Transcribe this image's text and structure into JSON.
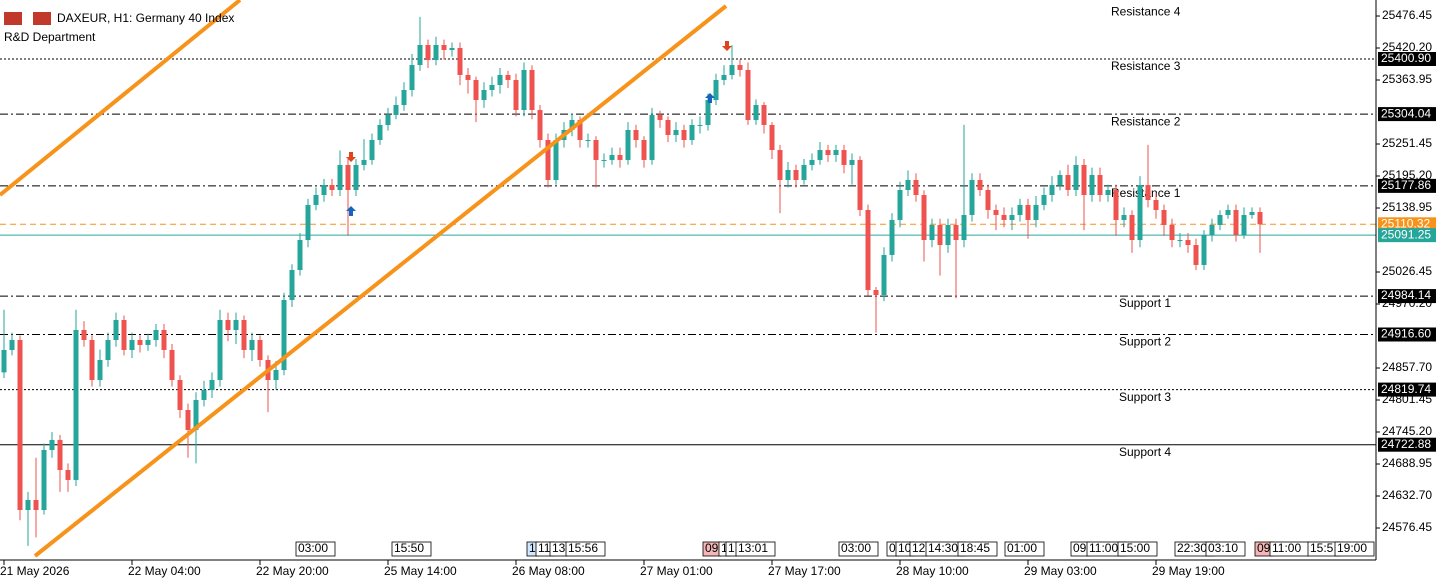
{
  "header": {
    "symbol_line": "DAXEUR, H1:  Germany 40 Index",
    "subtitle": "R&D Department"
  },
  "chart_data": {
    "type": "candlestick",
    "open": [
      24850,
      24889.4,
      24906.9,
      24608.1,
      24625.7,
      24608.1,
      24713.6,
      24731.2,
      24678.4,
      24660.9,
      24924.5,
      24906.9,
      24836.6,
      24871.8,
      24906.9,
      24942.1,
      24889.4,
      24906.9,
      24898.2,
      24906.9,
      24924.5,
      24889.4,
      24836.6,
      24783.9,
      24748.7,
      24801.5,
      24819.1,
      24836.6,
      24942.1,
      24924.5,
      24942.1,
      24889.4,
      24906.9,
      24871.8,
      24836.6,
      24854.2,
      24977.3,
      25030.0,
      25082.7,
      25144.3,
      25161.8,
      25179.4,
      25170.6,
      25214.6,
      25170.6,
      25214.6,
      25223.4,
      25258.5,
      25284.9,
      25302.5,
      25320.0,
      25346.4,
      25390.3,
      25425.5,
      25399.1,
      25425.5,
      25416.7,
      25420.2,
      25372.8,
      25364.0,
      25328.8,
      25346.4,
      25355.2,
      25372.8,
      25364.0,
      25311.2,
      25381.6,
      25311.2,
      25258.5,
      25188.2,
      25258.5,
      25276.1,
      25293.7,
      25258.5,
      25258.5,
      25223.4,
      25223.4,
      25232.1,
      25223.4,
      25276.1,
      25258.5,
      25223.4,
      25302.5,
      25293.7,
      25267.3,
      25276.1,
      25258.5,
      25284.9,
      25284.9,
      25328.8,
      25364.0,
      25372.8,
      25390.3,
      25381.6,
      25293.7,
      25320.0,
      25284.9,
      25240.9,
      25188.2,
      25205.8,
      25188.2,
      25214.6,
      25223.4,
      25240.9,
      25232.1,
      25240.9,
      25214.6,
      25223.4,
      25135.5,
      24994.8,
      24986.0,
      25056.4,
      25117.9,
      25170.6,
      25188.2,
      25161.8,
      25082.7,
      25109.1,
      25073.9,
      25109.1,
      25082.7,
      25126.7,
      25188.2,
      25170.6,
      25135.5,
      25126.7,
      25117.9,
      25126.7,
      25144.3,
      25117.9,
      25144.3,
      25161.8,
      25179.4,
      25197.0,
      25170.6,
      25214.6,
      25161.8,
      25197.0,
      25161.8,
      25170.6,
      25117.9,
      25126.7,
      25082.7,
      25179.4,
      25153.0,
      25135.5,
      25109.1,
      25082.7,
      25082.7,
      25073.9,
      25038.8,
      25091.5,
      25109.1,
      25126.7,
      25135.5,
      25091.5,
      25126.7,
      25131.9
    ],
    "high": [
      24960,
      24920,
      24915,
      24640,
      24700,
      24725,
      24745,
      24740,
      24690,
      24960,
      24940,
      24915,
      24890,
      24920,
      24955,
      24950,
      24920,
      24915,
      24918,
      24935,
      24935,
      24900,
      24845,
      24795,
      24815,
      24835,
      24850,
      24960,
      24955,
      24955,
      24950,
      24920,
      24915,
      24880,
      24870,
      24990,
      25040,
      25095,
      25155,
      25175,
      25190,
      25190,
      25240,
      25225,
      25225,
      25260,
      25270,
      25295,
      25315,
      25335,
      25360,
      25410,
      25475,
      25435,
      25440,
      25435,
      25430,
      25430,
      25385,
      25370,
      25360,
      25370,
      25385,
      25380,
      25375,
      25395,
      25390,
      25320,
      25270,
      25270,
      25290,
      25305,
      25300,
      25270,
      25265,
      25235,
      25245,
      25245,
      25290,
      25285,
      25265,
      25315,
      25310,
      25300,
      25290,
      25285,
      25295,
      25300,
      25340,
      25375,
      25390,
      25425,
      25400,
      25395,
      25330,
      25325,
      25290,
      25250,
      25220,
      25215,
      25225,
      25235,
      25255,
      25250,
      25250,
      25250,
      25235,
      25230,
      25145,
      25000,
      25070,
      25130,
      25185,
      25205,
      25200,
      25170,
      25120,
      25120,
      25120,
      25120,
      25285,
      25200,
      25200,
      25180,
      25145,
      25140,
      25140,
      25155,
      25155,
      25160,
      25175,
      25195,
      25205,
      25215,
      25230,
      25225,
      25210,
      25210,
      25180,
      25180,
      25140,
      25135,
      25195,
      25250,
      25165,
      25145,
      25120,
      25095,
      25095,
      25085,
      25100,
      25120,
      25135,
      25145,
      25145,
      25140,
      25140,
      25140
    ],
    "low": [
      24840,
      24880,
      24590,
      24545,
      24560,
      24600,
      24700,
      24640,
      24640,
      24650,
      24895,
      24825,
      24825,
      24860,
      24895,
      24880,
      24875,
      24885,
      24888,
      24895,
      24875,
      24825,
      24770,
      24700,
      24690,
      24790,
      24805,
      24825,
      24905,
      24900,
      24875,
      24870,
      24860,
      24780,
      24820,
      24845,
      24965,
      25020,
      25070,
      25135,
      25150,
      25160,
      25160,
      25090,
      25160,
      25205,
      25215,
      25250,
      25275,
      25295,
      25310,
      25335,
      25380,
      25385,
      25390,
      25400,
      25405,
      25355,
      25340,
      25290,
      25315,
      25335,
      25340,
      25350,
      25300,
      25300,
      25295,
      25245,
      25175,
      25180,
      25245,
      25265,
      25245,
      25245,
      25175,
      25210,
      25215,
      25210,
      25215,
      25245,
      25210,
      25215,
      25280,
      25255,
      25255,
      25245,
      25250,
      25270,
      25275,
      25320,
      25355,
      25365,
      25370,
      25285,
      25285,
      25270,
      25225,
      25130,
      25175,
      25175,
      25180,
      25205,
      25215,
      25220,
      25220,
      25200,
      25180,
      25125,
      24985,
      24920,
      24975,
      25045,
      25105,
      25160,
      25150,
      25045,
      25070,
      25020,
      25060,
      24980,
      25070,
      25115,
      25160,
      25120,
      25100,
      25105,
      25100,
      25115,
      25085,
      25105,
      25135,
      25150,
      25170,
      25160,
      25160,
      25100,
      25150,
      25150,
      25150,
      25090,
      25105,
      25060,
      25070,
      25140,
      25120,
      25090,
      25070,
      25070,
      25060,
      25030,
      25030,
      25080,
      25100,
      25120,
      25080,
      25085,
      25120,
      25060
    ],
    "close": [
      24889.4,
      24906.9,
      24608.1,
      24625.7,
      24608.1,
      24713.6,
      24731.2,
      24678.4,
      24660.9,
      24924.5,
      24906.9,
      24836.6,
      24871.8,
      24906.9,
      24942.1,
      24889.4,
      24906.9,
      24898.2,
      24906.9,
      24924.5,
      24889.4,
      24836.6,
      24783.9,
      24748.7,
      24801.5,
      24819.1,
      24836.6,
      24942.1,
      24924.5,
      24942.1,
      24889.4,
      24906.9,
      24871.8,
      24836.6,
      24854.2,
      24977.3,
      25030.0,
      25082.7,
      25144.3,
      25161.8,
      25179.4,
      25170.6,
      25214.6,
      25170.6,
      25214.6,
      25223.4,
      25258.5,
      25284.9,
      25302.5,
      25320.0,
      25346.4,
      25390.3,
      25425.5,
      25399.1,
      25425.5,
      25416.7,
      25420.2,
      25372.8,
      25364.0,
      25328.8,
      25346.4,
      25355.2,
      25372.8,
      25364.0,
      25311.2,
      25381.6,
      25311.2,
      25258.5,
      25188.2,
      25258.5,
      25276.1,
      25293.7,
      25258.5,
      25258.5,
      25223.4,
      25223.4,
      25232.1,
      25223.4,
      25276.1,
      25258.5,
      25223.4,
      25302.5,
      25293.7,
      25267.3,
      25276.1,
      25258.5,
      25284.9,
      25284.9,
      25328.8,
      25364.0,
      25372.8,
      25390.3,
      25381.6,
      25293.7,
      25320.0,
      25284.9,
      25240.9,
      25188.2,
      25205.8,
      25188.2,
      25214.6,
      25223.4,
      25240.9,
      25232.1,
      25240.9,
      25214.6,
      25223.4,
      25135.5,
      24994.8,
      24986.0,
      25056.4,
      25117.9,
      25170.6,
      25188.2,
      25161.8,
      25082.7,
      25109.1,
      25073.9,
      25109.1,
      25082.7,
      25126.7,
      25188.2,
      25170.6,
      25135.5,
      25126.7,
      25117.9,
      25126.7,
      25144.3,
      25117.9,
      25144.3,
      25161.8,
      25179.4,
      25197.0,
      25170.6,
      25214.6,
      25161.8,
      25197.0,
      25161.8,
      25170.6,
      25117.9,
      25126.7,
      25082.7,
      25179.4,
      25153.0,
      25135.5,
      25109.1,
      25082.7,
      25082.7,
      25073.9,
      25038.8,
      25091.5,
      25109.1,
      25126.7,
      25135.5,
      25091.5,
      25126.7,
      25131.9,
      25110.32
    ],
    "up_color": "#26a69a",
    "down_color": "#ef5350",
    "xlim": [
      -0.5,
      171.5
    ],
    "xticks": [
      {
        "value": 0,
        "label": "21 May 2026"
      },
      {
        "value": 16,
        "label": "22 May 04:00"
      },
      {
        "value": 32,
        "label": "22 May 20:00"
      },
      {
        "value": 48,
        "label": "25 May 14:00"
      },
      {
        "value": 64,
        "label": "26 May 08:00"
      },
      {
        "value": 80,
        "label": "27 May 01:00"
      },
      {
        "value": 96,
        "label": "27 May 17:00"
      },
      {
        "value": 112,
        "label": "28 May 10:00"
      },
      {
        "value": 128,
        "label": "29 May 03:00"
      },
      {
        "value": 144,
        "label": "29 May 19:00"
      }
    ],
    "ylim": [
      24520.2,
      25504.6
    ],
    "yticks": [
      25476.45,
      {
        "value": 25420.2,
        "label": "25420.20"
      },
      25363.95,
      25251.45,
      {
        "value": 25195.2,
        "label": "25195.20"
      },
      25138.95,
      25026.45,
      {
        "value": 24970.2,
        "label": "24970.20"
      },
      {
        "value": 24857.7,
        "label": "24857.70"
      },
      24801.45,
      {
        "value": 24745.2,
        "label": "24745.20"
      },
      24688.95,
      {
        "value": 24632.7,
        "label": "24632.70"
      },
      24576.45
    ],
    "levels": [
      {
        "name": "Resistance 4",
        "value": 25497,
        "style": "none"
      },
      {
        "name": "Resistance 3",
        "value": {
          "value": 25400.9,
          "label": "25400.90"
        },
        "style": "dotted"
      },
      {
        "name": "Resistance 2",
        "value": 25304.04,
        "style": "dashdot"
      },
      {
        "name": "Resistance 1",
        "value": 25177.86,
        "style": "dashdot"
      },
      {
        "name": "Support 1",
        "value": 24984.14,
        "style": "dashdot"
      },
      {
        "name": "Support 2",
        "value": {
          "value": 24916.6,
          "label": "24916.60"
        },
        "style": "dashdot"
      },
      {
        "name": "Support 3",
        "value": 24819.74,
        "style": "dotted"
      },
      {
        "name": "Support 4",
        "value": 24722.88,
        "style": "solid"
      }
    ],
    "price_lines": [
      {
        "value": 25110.32,
        "color": "#f7931a",
        "style": "dashed"
      },
      {
        "value": 25091.25,
        "color": "#26a69a",
        "style": "solid"
      }
    ],
    "time_markers": [
      {
        "label": "03:00",
        "color": "#ffffff"
      },
      {
        "label": "15:50",
        "color": "#ffffff"
      },
      {
        "label": "1",
        "color": "#cfe8ff"
      },
      {
        "label": "11",
        "color": "#ffffff"
      },
      {
        "label": "13",
        "color": "#ffffff"
      },
      {
        "label": "15:56",
        "color": "#ffffff"
      },
      {
        "label": "09",
        "color": "#f4b6b6"
      },
      {
        "label": "1",
        "color": "#ffffff"
      },
      {
        "label": "1",
        "color": "#ffffff"
      },
      {
        "label": "13:01",
        "color": "#ffffff"
      },
      {
        "label": "03:00",
        "color": "#ffffff"
      },
      {
        "label": "0",
        "color": "#ffffff"
      },
      {
        "label": "10",
        "color": "#ffffff"
      },
      {
        "label": "12",
        "color": "#ffffff"
      },
      {
        "label": "14:30",
        "color": "#ffffff"
      },
      {
        "label": "18:45",
        "color": "#ffffff"
      },
      {
        "label": "01:00",
        "color": "#ffffff"
      },
      {
        "label": "09",
        "color": "#ffffff"
      },
      {
        "label": "11:00",
        "color": "#ffffff"
      },
      {
        "label": "15:00",
        "color": "#ffffff"
      },
      {
        "label": "22:30",
        "color": "#ffffff"
      },
      {
        "label": "03:10",
        "color": "#ffffff"
      },
      {
        "label": "09",
        "color": "#f4b6b6"
      },
      {
        "label": "11:00",
        "color": "#ffffff"
      },
      {
        "label": "15:5",
        "color": "#ffffff"
      },
      {
        "label": "19:00",
        "color": "#ffffff"
      }
    ]
  }
}
